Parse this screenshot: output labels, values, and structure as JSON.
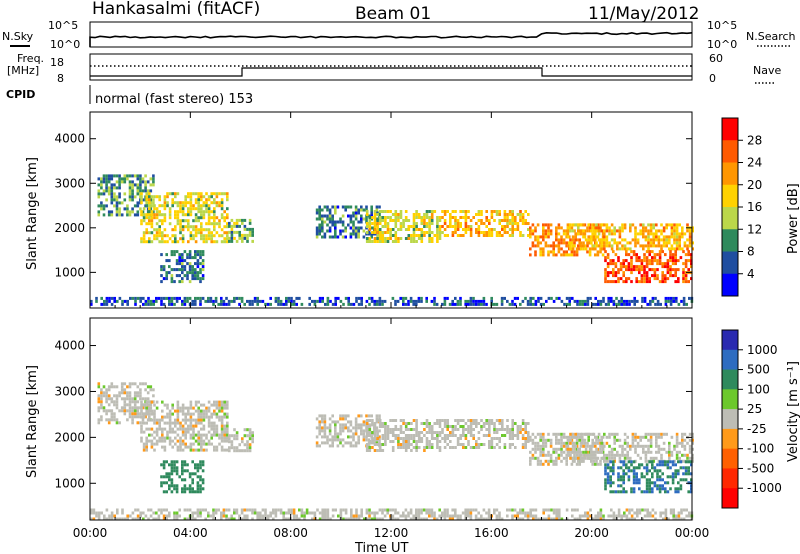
{
  "header": {
    "site": "Hankasalmi (fitACF)",
    "beam": "Beam 01",
    "date": "11/May/2012"
  },
  "aux": {
    "nsky_label": "N.Sky",
    "nsearch_label": "N.Search",
    "freq_label_1": "Freq.",
    "freq_label_2": "[MHz]",
    "nave_label": "Nave",
    "cpid_label": "CPID",
    "cpid_text": "normal (fast stereo) 153",
    "noise_ticks_left": [
      "10^5",
      "10^0"
    ],
    "noise_ticks_right": [
      "10^5",
      "10^0"
    ],
    "freq_ticks": [
      "18",
      "8"
    ],
    "nave_ticks": [
      "60",
      "0"
    ]
  },
  "colorbars": {
    "power": {
      "label": "Power [dB]",
      "ticks": [
        "28",
        "24",
        "20",
        "16",
        "12",
        "8",
        "4"
      ],
      "colors": [
        "#ff0000",
        "#ff5a00",
        "#ff9600",
        "#ffd200",
        "#bbd74a",
        "#2f8a5d",
        "#1f4ea0",
        "#0000ff"
      ]
    },
    "velocity": {
      "label": "Velocity [m s⁻¹]",
      "ticks": [
        "1000",
        "500",
        "100",
        "25",
        "-25",
        "-100",
        "-500",
        "-1000"
      ],
      "colors": [
        "#2a2ab0",
        "#2e6cc0",
        "#2f8a5d",
        "#6cc82c",
        "#bdbdb5",
        "#ff9a1a",
        "#ff6000",
        "#ff2800",
        "#ff0000"
      ]
    }
  },
  "chart_data": [
    {
      "type": "heatmap",
      "panel": "power",
      "x_range": [
        "00:00",
        "00:00"
      ],
      "x_ticks": [
        "00:00",
        "04:00",
        "08:00",
        "12:00",
        "16:00",
        "20:00",
        "00:00"
      ],
      "ylabel": "Slant Range [km]",
      "y_ticks": [
        1000,
        2000,
        3000,
        4000
      ],
      "ylim": [
        200,
        4600
      ],
      "colorbar_label": "Power [dB]",
      "regions": [
        {
          "t0": 0.3,
          "t1": 2.5,
          "r0": 2300,
          "r1": 3200,
          "value": 10
        },
        {
          "t0": 2.0,
          "t1": 5.5,
          "r0": 1700,
          "r1": 2800,
          "value": 16
        },
        {
          "t0": 2.8,
          "t1": 4.5,
          "r0": 800,
          "r1": 1500,
          "value": 8
        },
        {
          "t0": 5.5,
          "t1": 6.5,
          "r0": 1700,
          "r1": 2200,
          "value": 12
        },
        {
          "t0": 9.0,
          "t1": 11.5,
          "r0": 1800,
          "r1": 2500,
          "value": 8
        },
        {
          "t0": 11.0,
          "t1": 14.0,
          "r0": 1700,
          "r1": 2400,
          "value": 16
        },
        {
          "t0": 14.0,
          "t1": 17.5,
          "r0": 1800,
          "r1": 2400,
          "value": 20
        },
        {
          "t0": 17.5,
          "t1": 20.5,
          "r0": 1400,
          "r1": 2100,
          "value": 22
        },
        {
          "t0": 19.0,
          "t1": 24.0,
          "r0": 1500,
          "r1": 2100,
          "value": 20
        },
        {
          "t0": 20.5,
          "t1": 24.0,
          "r0": 800,
          "r1": 1500,
          "value": 26
        },
        {
          "t0": 0.0,
          "t1": 24.0,
          "r0": 250,
          "r1": 450,
          "value": 6
        }
      ]
    },
    {
      "type": "heatmap",
      "panel": "velocity",
      "x_range": [
        "00:00",
        "00:00"
      ],
      "x_ticks": [
        "00:00",
        "04:00",
        "08:00",
        "12:00",
        "16:00",
        "20:00",
        "00:00"
      ],
      "xlabel": "Time UT",
      "ylabel": "Slant Range [km]",
      "y_ticks": [
        1000,
        2000,
        3000,
        4000
      ],
      "ylim": [
        200,
        4600
      ],
      "colorbar_label": "Velocity [m s⁻¹]",
      "regions": [
        {
          "t0": 0.3,
          "t1": 2.5,
          "r0": 2300,
          "r1": 3200,
          "value": 0
        },
        {
          "t0": 2.0,
          "t1": 5.5,
          "r0": 1700,
          "r1": 2800,
          "value": 0
        },
        {
          "t0": 2.8,
          "t1": 4.5,
          "r0": 800,
          "r1": 1500,
          "value": 150
        },
        {
          "t0": 5.5,
          "t1": 6.5,
          "r0": 1700,
          "r1": 2200,
          "value": 0
        },
        {
          "t0": 9.0,
          "t1": 11.5,
          "r0": 1800,
          "r1": 2500,
          "value": 0
        },
        {
          "t0": 11.0,
          "t1": 14.0,
          "r0": 1700,
          "r1": 2400,
          "value": 0
        },
        {
          "t0": 14.0,
          "t1": 17.5,
          "r0": 1800,
          "r1": 2400,
          "value": 0
        },
        {
          "t0": 17.5,
          "t1": 20.5,
          "r0": 1400,
          "r1": 2100,
          "value": 0
        },
        {
          "t0": 19.0,
          "t1": 24.0,
          "r0": 1500,
          "r1": 2100,
          "value": 0
        },
        {
          "t0": 20.5,
          "t1": 24.0,
          "r0": 800,
          "r1": 1500,
          "value": 300
        },
        {
          "t0": 0.0,
          "t1": 24.0,
          "r0": 250,
          "r1": 450,
          "value": 0
        }
      ]
    }
  ]
}
